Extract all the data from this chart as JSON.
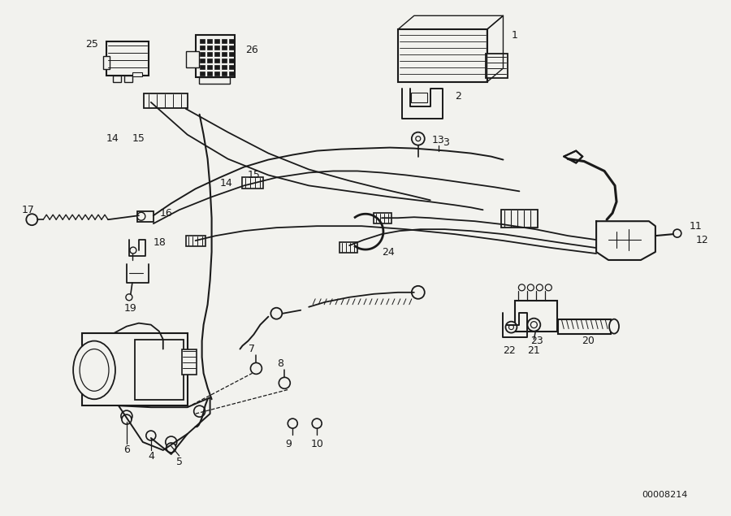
{
  "bg_color": "#f2f2ee",
  "line_color": "#1a1a1a",
  "figsize": [
    9.0,
    6.35
  ],
  "dpi": 100,
  "diagram_id": "00008214",
  "label_fs": 9.0
}
